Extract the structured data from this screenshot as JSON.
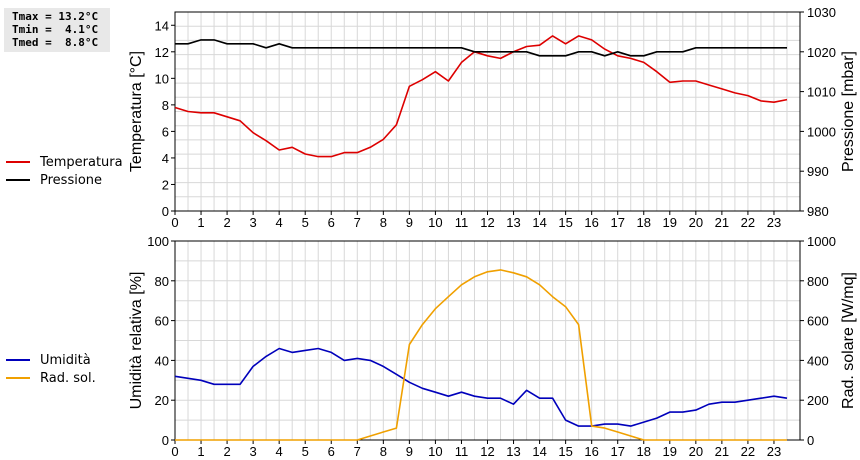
{
  "stats": {
    "tmax": "Tmax = 13.2°C",
    "tmin": "Tmin =  4.1°C",
    "tmed": "Tmed =  8.8°C"
  },
  "legend_top": [
    {
      "label": "Temperatura",
      "color": "#dd0000"
    },
    {
      "label": "Pressione",
      "color": "#000000"
    }
  ],
  "legend_bottom": [
    {
      "label": "Umidità",
      "color": "#0000bb"
    },
    {
      "label": "Rad. sol.",
      "color": "#f0a000"
    }
  ],
  "chart_data": [
    {
      "type": "line",
      "ylabel": "Temperatura [°C]",
      "ylabel2": "Pressione [mbar]",
      "xlim": [
        0,
        24
      ],
      "ylim": [
        0,
        15
      ],
      "ylim2": [
        980,
        1030
      ],
      "yticks": [
        0,
        2,
        4,
        6,
        8,
        10,
        12,
        14
      ],
      "yticks2": [
        980,
        990,
        1000,
        1010,
        1020,
        1030
      ],
      "xticks": [
        0,
        1,
        2,
        3,
        4,
        5,
        6,
        7,
        8,
        9,
        10,
        11,
        12,
        13,
        14,
        15,
        16,
        17,
        18,
        19,
        20,
        21,
        22,
        23
      ],
      "grid": true,
      "series": [
        {
          "name": "Temperatura",
          "color": "#dd0000",
          "axis": "left",
          "x": [
            0,
            0.5,
            1,
            1.5,
            2,
            2.5,
            3,
            3.5,
            4,
            4.5,
            5,
            5.5,
            6,
            6.5,
            7,
            7.5,
            8,
            8.5,
            9,
            9.5,
            10,
            10.5,
            11,
            11.5,
            12,
            12.5,
            13,
            13.5,
            14,
            14.5,
            15,
            15.5,
            16,
            16.5,
            17,
            17.5,
            18,
            18.5,
            19,
            19.5,
            20,
            20.5,
            21,
            21.5,
            22,
            22.5,
            23,
            23.5
          ],
          "y": [
            7.8,
            7.5,
            7.4,
            7.4,
            7.1,
            6.8,
            5.9,
            5.3,
            4.6,
            4.8,
            4.3,
            4.1,
            4.1,
            4.4,
            4.4,
            4.8,
            5.4,
            6.5,
            9.4,
            9.9,
            10.5,
            9.8,
            11.2,
            12.0,
            11.7,
            11.5,
            12.0,
            12.4,
            12.5,
            13.2,
            12.6,
            13.2,
            12.9,
            12.2,
            11.7,
            11.5,
            11.2,
            10.5,
            9.7,
            9.8,
            9.8,
            9.5,
            9.2,
            8.9,
            8.7,
            8.3,
            8.2,
            8.4
          ]
        },
        {
          "name": "Pressione",
          "color": "#000000",
          "axis": "right",
          "x": [
            0,
            0.5,
            1,
            1.5,
            2,
            2.5,
            3,
            3.5,
            4,
            4.5,
            5,
            5.5,
            6,
            6.5,
            7,
            7.5,
            8,
            8.5,
            9,
            9.5,
            10,
            10.5,
            11,
            11.5,
            12,
            12.5,
            13,
            13.5,
            14,
            14.5,
            15,
            15.5,
            16,
            16.5,
            17,
            17.5,
            18,
            18.5,
            19,
            19.5,
            20,
            20.5,
            21,
            21.5,
            22,
            22.5,
            23,
            23.5
          ],
          "y": [
            1022,
            1022,
            1023,
            1023,
            1022,
            1022,
            1022,
            1021,
            1022,
            1021,
            1021,
            1021,
            1021,
            1021,
            1021,
            1021,
            1021,
            1021,
            1021,
            1021,
            1021,
            1021,
            1021,
            1020,
            1020,
            1020,
            1020,
            1020,
            1019,
            1019,
            1019,
            1020,
            1020,
            1019,
            1020,
            1019,
            1019,
            1020,
            1020,
            1020,
            1021,
            1021,
            1021,
            1021,
            1021,
            1021,
            1021,
            1021
          ]
        }
      ]
    },
    {
      "type": "line",
      "ylabel": "Umidità relativa [%]",
      "ylabel2": "Rad. solare [W/mq]",
      "xlim": [
        0,
        24
      ],
      "ylim": [
        0,
        100
      ],
      "ylim2": [
        0,
        1000
      ],
      "yticks": [
        0,
        20,
        40,
        60,
        80,
        100
      ],
      "yticks2": [
        0,
        200,
        400,
        600,
        800,
        1000
      ],
      "xticks": [
        0,
        1,
        2,
        3,
        4,
        5,
        6,
        7,
        8,
        9,
        10,
        11,
        12,
        13,
        14,
        15,
        16,
        17,
        18,
        19,
        20,
        21,
        22,
        23
      ],
      "grid": true,
      "series": [
        {
          "name": "Umidità",
          "color": "#0000bb",
          "axis": "left",
          "x": [
            0,
            0.5,
            1,
            1.5,
            2,
            2.5,
            3,
            3.5,
            4,
            4.5,
            5,
            5.5,
            6,
            6.5,
            7,
            7.5,
            8,
            8.5,
            9,
            9.5,
            10,
            10.5,
            11,
            11.5,
            12,
            12.5,
            13,
            13.5,
            14,
            14.5,
            15,
            15.5,
            16,
            16.5,
            17,
            17.5,
            18,
            18.5,
            19,
            19.5,
            20,
            20.5,
            21,
            21.5,
            22,
            22.5,
            23,
            23.5
          ],
          "y": [
            32,
            31,
            30,
            28,
            28,
            28,
            37,
            42,
            46,
            44,
            45,
            46,
            44,
            40,
            41,
            40,
            37,
            33,
            29,
            26,
            24,
            22,
            24,
            22,
            21,
            21,
            18,
            25,
            21,
            21,
            10,
            7,
            7,
            8,
            8,
            7,
            9,
            11,
            14,
            14,
            15,
            18,
            19,
            19,
            20,
            21,
            22,
            21
          ]
        },
        {
          "name": "Rad. sol.",
          "color": "#f0a000",
          "axis": "right",
          "x": [
            0,
            0.5,
            1,
            1.5,
            2,
            2.5,
            3,
            3.5,
            4,
            4.5,
            5,
            5.5,
            6,
            6.5,
            7,
            7.5,
            8,
            8.5,
            9,
            9.5,
            10,
            10.5,
            11,
            11.5,
            12,
            12.5,
            13,
            13.5,
            14,
            14.5,
            15,
            15.5,
            16,
            16.5,
            17,
            17.5,
            18,
            18.5,
            19,
            19.5,
            20,
            20.5,
            21,
            21.5,
            22,
            22.5,
            23,
            23.5
          ],
          "y": [
            0,
            0,
            0,
            0,
            0,
            0,
            0,
            0,
            0,
            0,
            0,
            0,
            0,
            0,
            0,
            20,
            40,
            60,
            480,
            580,
            660,
            720,
            780,
            820,
            845,
            855,
            840,
            820,
            780,
            720,
            670,
            580,
            70,
            60,
            40,
            20,
            0,
            0,
            0,
            0,
            0,
            0,
            0,
            0,
            0,
            0,
            0,
            0
          ]
        }
      ]
    }
  ]
}
